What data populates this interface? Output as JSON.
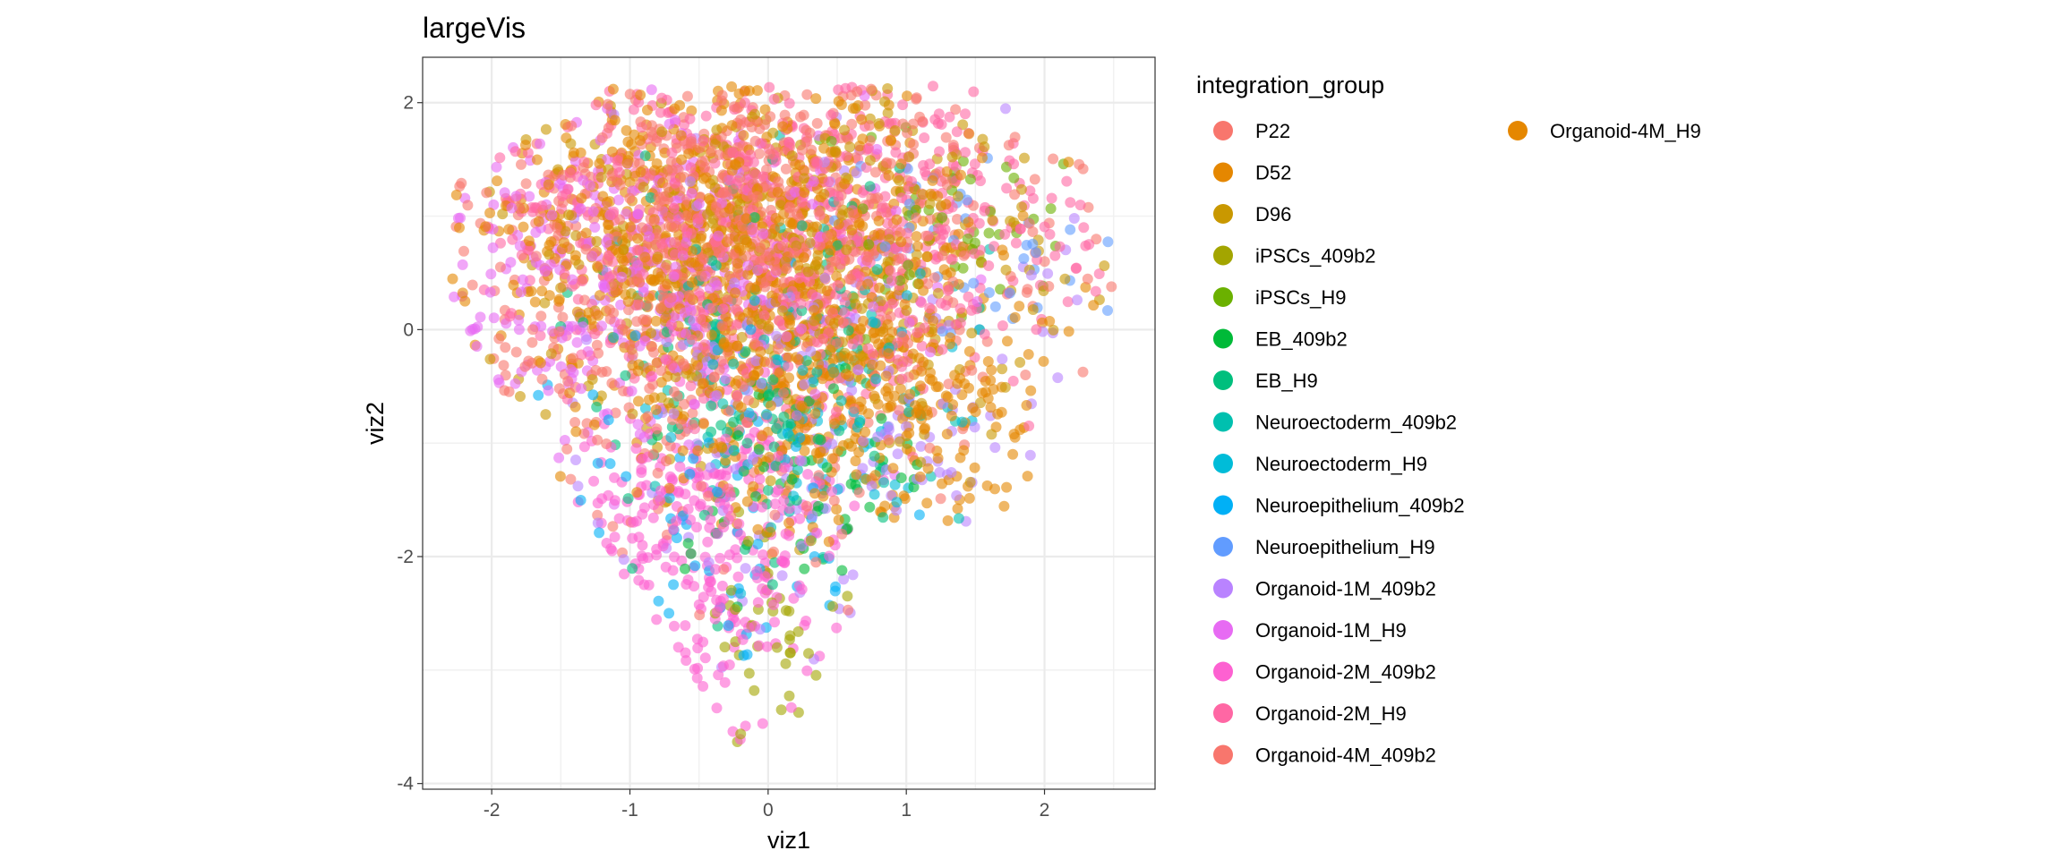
{
  "chart_data": {
    "type": "scatter",
    "title": "largeVis",
    "xlabel": "viz1",
    "ylabel": "viz2",
    "xlim": [
      -2.5,
      2.8
    ],
    "ylim": [
      -4.05,
      2.4
    ],
    "x_ticks": [
      -2,
      -1,
      0,
      1,
      2
    ],
    "x_tick_labels": [
      "-2",
      "-1",
      "0",
      "1",
      "2"
    ],
    "y_ticks": [
      2,
      0,
      -2,
      -4
    ],
    "y_tick_labels": [
      "2",
      "0",
      "-2",
      "-4"
    ],
    "grid": true,
    "point_alpha": 0.6,
    "legend_position": "right",
    "legend": {
      "title": "integration_group",
      "groups": [
        {
          "name": "P22",
          "color": "#F8766D"
        },
        {
          "name": "D52",
          "color": "#E58700"
        },
        {
          "name": "D96",
          "color": "#C99800"
        },
        {
          "name": "iPSCs_409b2",
          "color": "#A3A500"
        },
        {
          "name": "iPSCs_H9",
          "color": "#6BB100"
        },
        {
          "name": "EB_409b2",
          "color": "#00BA38"
        },
        {
          "name": "EB_H9",
          "color": "#00BF7D"
        },
        {
          "name": "Neuroectoderm_409b2",
          "color": "#00C0AF"
        },
        {
          "name": "Neuroectoderm_H9",
          "color": "#00BCD8"
        },
        {
          "name": "Neuroepithelium_409b2",
          "color": "#00B0F6"
        },
        {
          "name": "Neuroepithelium_H9",
          "color": "#619CFF"
        },
        {
          "name": "Organoid-1M_409b2",
          "color": "#B983FF"
        },
        {
          "name": "Organoid-1M_H9",
          "color": "#E76BF3"
        },
        {
          "name": "Organoid-2M_409b2",
          "color": "#FD61D1"
        },
        {
          "name": "Organoid-2M_H9",
          "color": "#FF67A4"
        },
        {
          "name": "Organoid-4M_409b2",
          "color": "#F8766D"
        },
        {
          "name": "Organoid-4M_H9",
          "color": "#E58700"
        }
      ]
    },
    "point_clusters": [
      {
        "group": "P22",
        "cx": -0.2,
        "cy": 0.3,
        "sx": 1.1,
        "sy": 1.0,
        "n": 500
      },
      {
        "group": "D52",
        "cx": -0.4,
        "cy": 0.8,
        "sx": 0.9,
        "sy": 0.7,
        "n": 700
      },
      {
        "group": "D52",
        "cx": 0.6,
        "cy": -0.6,
        "sx": 0.7,
        "sy": 0.6,
        "n": 400
      },
      {
        "group": "D96",
        "cx": 0.1,
        "cy": 0.6,
        "sx": 1.0,
        "sy": 0.9,
        "n": 400
      },
      {
        "group": "iPSCs_409b2",
        "cx": 0.0,
        "cy": -2.6,
        "sx": 0.25,
        "sy": 0.4,
        "n": 40
      },
      {
        "group": "iPSCs_H9",
        "cx": 1.2,
        "cy": 0.9,
        "sx": 0.4,
        "sy": 0.4,
        "n": 50
      },
      {
        "group": "EB_409b2",
        "cx": 0.2,
        "cy": -1.4,
        "sx": 0.5,
        "sy": 0.7,
        "n": 60
      },
      {
        "group": "EB_H9",
        "cx": 0.0,
        "cy": -0.6,
        "sx": 0.6,
        "sy": 0.9,
        "n": 120
      },
      {
        "group": "Neuroectoderm_409b2",
        "cx": 0.3,
        "cy": -0.2,
        "sx": 0.7,
        "sy": 0.8,
        "n": 80
      },
      {
        "group": "Neuroectoderm_H9",
        "cx": 0.5,
        "cy": -0.9,
        "sx": 0.6,
        "sy": 0.6,
        "n": 60
      },
      {
        "group": "Neuroepithelium_409b2",
        "cx": -0.3,
        "cy": -1.6,
        "sx": 0.6,
        "sy": 0.7,
        "n": 60
      },
      {
        "group": "Neuroepithelium_H9",
        "cx": 1.6,
        "cy": 0.6,
        "sx": 0.5,
        "sy": 0.4,
        "n": 40
      },
      {
        "group": "Organoid-1M_409b2",
        "cx": 0.5,
        "cy": -0.6,
        "sx": 0.9,
        "sy": 1.1,
        "n": 200
      },
      {
        "group": "Organoid-1M_H9",
        "cx": -1.0,
        "cy": 0.5,
        "sx": 0.9,
        "sy": 0.7,
        "n": 350
      },
      {
        "group": "Organoid-2M_409b2",
        "cx": -0.5,
        "cy": -1.8,
        "sx": 0.5,
        "sy": 0.8,
        "n": 300
      },
      {
        "group": "Organoid-2M_H9",
        "cx": 0.3,
        "cy": 1.0,
        "sx": 1.1,
        "sy": 0.8,
        "n": 600
      },
      {
        "group": "Organoid-4M_409b2",
        "cx": -0.3,
        "cy": 1.2,
        "sx": 0.9,
        "sy": 0.6,
        "n": 300
      }
    ]
  }
}
